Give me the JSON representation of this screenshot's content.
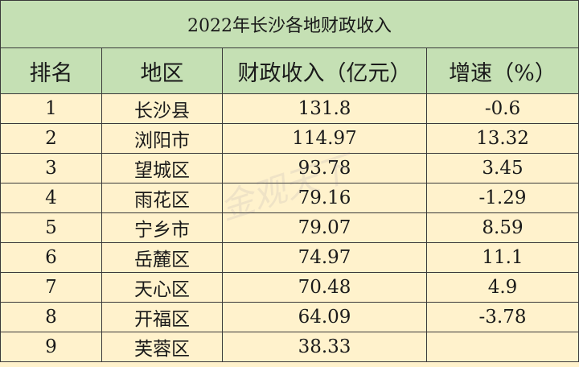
{
  "title": "2022年长沙各地财政收入",
  "headers": [
    "排名",
    "地区",
    "财政收入（亿元）",
    "增速（%）"
  ],
  "rows": [
    [
      "1",
      "长沙县",
      "131.8",
      "-0.6"
    ],
    [
      "2",
      "浏阳市",
      "114.97",
      "13.32"
    ],
    [
      "3",
      "望城区",
      "93.78",
      "3.45"
    ],
    [
      "4",
      "雨花区",
      "79.16",
      "-1.29"
    ],
    [
      "5",
      "宁乡市",
      "79.07",
      "8.59"
    ],
    [
      "6",
      "岳麓区",
      "74.97",
      "11.1"
    ],
    [
      "7",
      "天心区",
      "70.48",
      "4.9"
    ],
    [
      "8",
      "开福区",
      "64.09",
      "-3.78"
    ],
    [
      "9",
      "芙蓉区",
      "38.33",
      ""
    ]
  ],
  "watermark": "金观天下",
  "colors": {
    "header_bg": "#c5e0b4",
    "row_bg": "#fff2cc"
  }
}
